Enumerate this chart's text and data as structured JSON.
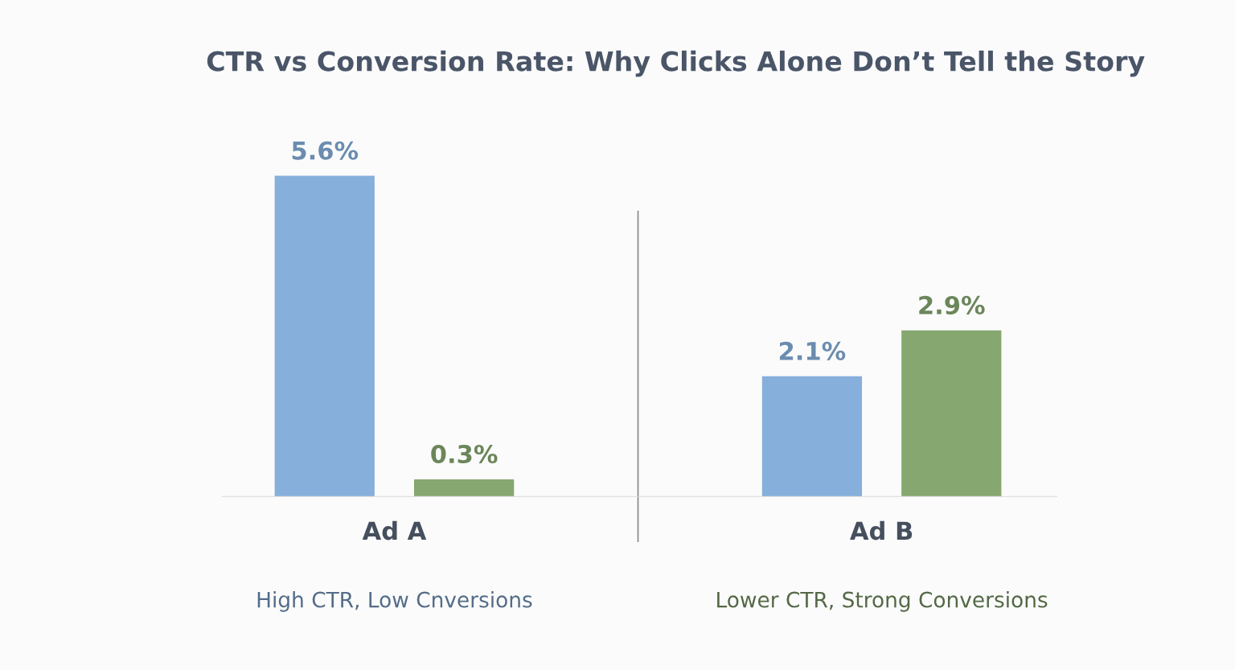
{
  "chart_data": {
    "type": "bar",
    "title": "CTR vs Conversion Rate: Why Clicks Alone Don’t Tell the Story",
    "categories": [
      "Ad A",
      "Ad B"
    ],
    "series": [
      {
        "color": "#86afdb",
        "values": [
          5.6,
          2.1
        ],
        "value_labels": [
          "5.6%",
          "2.1%"
        ]
      },
      {
        "color": "#86a870",
        "values": [
          0.3,
          2.9
        ],
        "value_labels": [
          "0.3%",
          "2.9%"
        ]
      }
    ],
    "annotations": [
      "High CTR, Low Cnversions",
      "Lower CTR, Strong Conversions"
    ]
  }
}
